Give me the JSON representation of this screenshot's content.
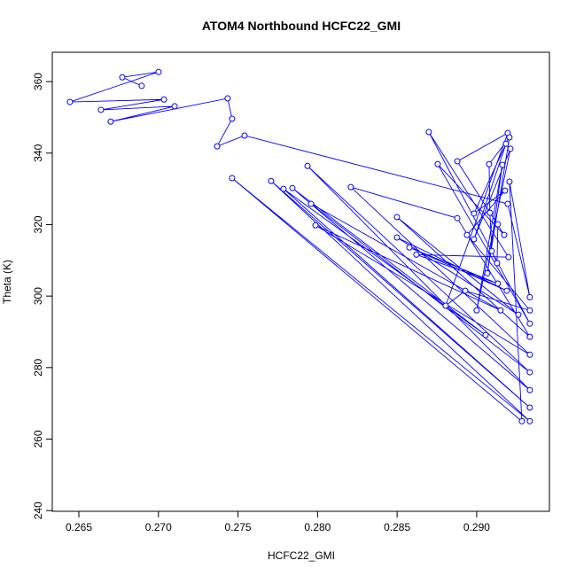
{
  "chart_data": {
    "type": "line",
    "title": "ATOM4 Northbound HCFC22_GMI",
    "x_label": "HCFC22_GMI",
    "y_label": "Theta (K)",
    "xlim": [
      0.26333,
      0.29457
    ],
    "ylim": [
      239.8,
      368.2
    ],
    "xticks": [
      0.265,
      {
        "value": 0.27,
        "label": "0.270"
      },
      0.275,
      {
        "value": 0.28,
        "label": "0.280"
      },
      0.285,
      {
        "value": 0.29,
        "label": "0.290"
      }
    ],
    "yticks": [
      240,
      260,
      280,
      300,
      320,
      340,
      360
    ],
    "series": [
      {
        "name": "HCFC22_GMI",
        "color": "#0000ff",
        "x": [
          0.26895,
          0.26773,
          0.27001,
          0.26444,
          0.27035,
          0.26639,
          0.27102,
          0.267,
          0.27435,
          0.27463,
          0.27369,
          0.27541,
          0.29195,
          0.29334,
          0.29206,
          0.29284,
          0.27463,
          0.29334,
          0.27708,
          0.29334,
          0.27786,
          0.29056,
          0.27842,
          0.29334,
          0.27937,
          0.29334,
          0.27959,
          0.2915,
          0.27987,
          0.29334,
          0.28209,
          0.28878,
          0.29334,
          0.28499,
          0.29262,
          0.28499,
          0.29189,
          0.28577,
          0.29133,
          0.28621,
          0.292,
          0.28699,
          0.29334,
          0.28755,
          0.29173,
          0.28878,
          0.29195,
          0.28805,
          0.28928,
          0.29334,
          0.28939,
          0.29178,
          0.28983,
          0.29184,
          0.28983,
          0.29212,
          0.29,
          0.29161,
          0.29067,
          0.29206,
          0.29078,
          0.29083,
          0.29095,
          0.29128,
          0.29133
        ],
        "values": [
          358.8,
          361.2,
          362.7,
          354.3,
          355.0,
          352.1,
          353.1,
          348.8,
          355.3,
          349.6,
          341.9,
          344.9,
          325.8,
          299.7,
          332.0,
          265.0,
          333.0,
          265.0,
          332.2,
          268.8,
          330.0,
          289.1,
          330.2,
          273.7,
          336.4,
          278.7,
          325.8,
          296.0,
          319.8,
          283.6,
          330.5,
          321.8,
          288.6,
          322.1,
          294.8,
          316.4,
          301.5,
          313.6,
          303.5,
          311.6,
          310.9,
          345.9,
          292.3,
          336.9,
          317.1,
          337.7,
          345.6,
          297.3,
          301.5,
          296.0,
          317.1,
          329.5,
          323.1,
          342.6,
          315.9,
          341.2,
          296.0,
          336.7,
          306.4,
          344.4,
          336.9,
          323.3,
          312.6,
          309.2,
          320.1
        ]
      }
    ]
  }
}
